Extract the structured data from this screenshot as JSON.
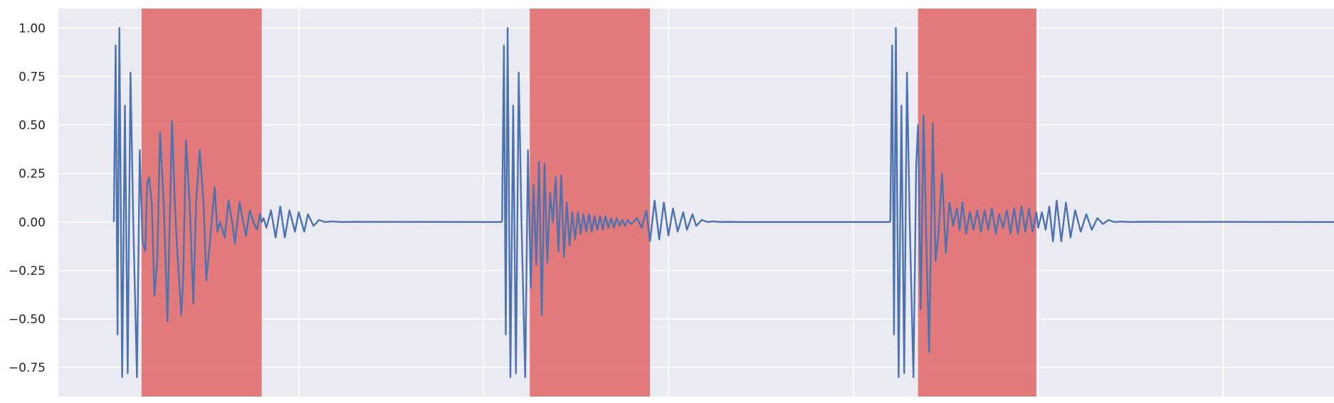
{
  "chart_data": {
    "type": "line",
    "title": "",
    "xlabel": "",
    "ylabel": "",
    "xlim": [
      -0.3,
      6.6
    ],
    "ylim": [
      -0.9,
      1.1
    ],
    "xticks": [
      1,
      2,
      3,
      4,
      5,
      6
    ],
    "yticks": [
      -0.75,
      -0.5,
      -0.25,
      0.0,
      0.25,
      0.5,
      0.75,
      1.0
    ],
    "ytick_labels": [
      "−0.75",
      "−0.50",
      "−0.25",
      "0.00",
      "0.25",
      "0.50",
      "0.75",
      "1.00"
    ],
    "grid": true,
    "background": "#eaeaf2",
    "line_color": "#4c72b0",
    "span_color": "#e06666",
    "highlight_spans": [
      {
        "x0": 0.15,
        "x1": 0.8
      },
      {
        "x0": 2.25,
        "x1": 2.9
      },
      {
        "x0": 4.35,
        "x1": 4.99
      }
    ],
    "series": [
      {
        "x": [
          0.0,
          0.01,
          0.02,
          0.03,
          0.045,
          0.06,
          0.075,
          0.09,
          0.105,
          0.125,
          0.14,
          0.155,
          0.17,
          0.18,
          0.19,
          0.205,
          0.22,
          0.235,
          0.25,
          0.27,
          0.29,
          0.315,
          0.33,
          0.34,
          0.365,
          0.375,
          0.39,
          0.41,
          0.43,
          0.445,
          0.465,
          0.485,
          0.5,
          0.52,
          0.545,
          0.56,
          0.575,
          0.6,
          0.62,
          0.64,
          0.655,
          0.68,
          0.7,
          0.715,
          0.735,
          0.755,
          0.775,
          0.79,
          0.8,
          0.81,
          0.825,
          0.85,
          0.875,
          0.9,
          0.925,
          0.95,
          0.98,
          1.0,
          1.03,
          1.05,
          1.08,
          1.11,
          1.14,
          1.18,
          1.23,
          1.3,
          2.1
        ],
        "y": [
          0.0,
          0.91,
          -0.58,
          1.0,
          -0.8,
          0.6,
          -0.78,
          0.77,
          0.0,
          -0.8,
          0.37,
          -0.1,
          -0.15,
          0.2,
          0.23,
          0.1,
          -0.38,
          -0.2,
          0.46,
          0.1,
          -0.51,
          0.52,
          0.1,
          -0.1,
          -0.48,
          -0.3,
          0.42,
          0.1,
          -0.42,
          0.1,
          0.37,
          0.1,
          -0.3,
          -0.1,
          0.18,
          -0.05,
          0.0,
          -0.08,
          0.11,
          0.0,
          -0.11,
          0.1,
          0.0,
          -0.07,
          0.06,
          0.0,
          -0.04,
          0.04,
          0.0,
          0.02,
          -0.03,
          0.06,
          -0.08,
          0.08,
          -0.08,
          0.06,
          -0.05,
          0.05,
          -0.05,
          0.04,
          -0.02,
          0.01,
          0.0,
          0.003,
          0.0,
          0.001,
          0.0
        ]
      },
      {
        "x": [
          2.1,
          2.11,
          2.12,
          2.13,
          2.145,
          2.16,
          2.175,
          2.19,
          2.205,
          2.225,
          2.24,
          2.255,
          2.27,
          2.285,
          2.3,
          2.315,
          2.33,
          2.345,
          2.36,
          2.375,
          2.39,
          2.405,
          2.42,
          2.435,
          2.45,
          2.465,
          2.48,
          2.495,
          2.51,
          2.525,
          2.54,
          2.555,
          2.57,
          2.585,
          2.6,
          2.615,
          2.63,
          2.645,
          2.66,
          2.675,
          2.69,
          2.705,
          2.72,
          2.735,
          2.75,
          2.765,
          2.78,
          2.795,
          2.81,
          2.83,
          2.855,
          2.88,
          2.9,
          2.925,
          2.95,
          2.975,
          3.0,
          3.025,
          3.05,
          3.08,
          3.1,
          3.13,
          3.15,
          3.18,
          3.21,
          3.24,
          3.28,
          3.33,
          3.4,
          4.2
        ],
        "y": [
          0.0,
          0.91,
          -0.58,
          1.0,
          -0.8,
          0.6,
          -0.78,
          0.77,
          0.0,
          -0.8,
          0.37,
          -0.34,
          0.19,
          -0.22,
          0.31,
          -0.48,
          0.3,
          -0.21,
          0.15,
          0.0,
          0.23,
          -0.15,
          0.24,
          -0.18,
          0.1,
          -0.12,
          0.05,
          -0.09,
          0.05,
          -0.06,
          0.04,
          -0.05,
          0.04,
          -0.05,
          0.03,
          -0.04,
          0.03,
          -0.04,
          0.03,
          -0.03,
          0.02,
          -0.03,
          0.02,
          -0.02,
          0.01,
          -0.02,
          0.01,
          -0.01,
          0.0,
          0.02,
          -0.03,
          0.06,
          -0.1,
          0.11,
          -0.09,
          0.1,
          -0.07,
          0.07,
          -0.05,
          0.05,
          -0.04,
          0.04,
          -0.02,
          0.01,
          0.0,
          0.003,
          0.0,
          0.001,
          0.0,
          0.0
        ]
      },
      {
        "x": [
          4.2,
          4.21,
          4.22,
          4.23,
          4.245,
          4.26,
          4.275,
          4.29,
          4.305,
          4.325,
          4.34,
          4.35,
          4.365,
          4.38,
          4.395,
          4.41,
          4.43,
          4.445,
          4.46,
          4.48,
          4.5,
          4.52,
          4.54,
          4.56,
          4.575,
          4.59,
          4.61,
          4.63,
          4.65,
          4.67,
          4.69,
          4.71,
          4.73,
          4.75,
          4.77,
          4.79,
          4.81,
          4.83,
          4.85,
          4.87,
          4.89,
          4.91,
          4.93,
          4.95,
          4.97,
          4.99,
          5.0,
          5.02,
          5.04,
          5.06,
          5.08,
          5.1,
          5.125,
          5.15,
          5.175,
          5.2,
          5.23,
          5.26,
          5.29,
          5.32,
          5.35,
          5.38,
          5.41,
          5.45,
          5.5,
          5.56,
          6.6
        ],
        "y": [
          0.0,
          0.91,
          -0.58,
          1.0,
          -0.8,
          0.6,
          -0.78,
          0.77,
          0.0,
          -0.8,
          0.3,
          0.5,
          -0.45,
          0.55,
          -0.1,
          -0.67,
          0.51,
          -0.2,
          -0.07,
          0.25,
          -0.16,
          0.1,
          -0.02,
          0.07,
          -0.04,
          0.1,
          -0.06,
          0.05,
          -0.04,
          0.06,
          -0.05,
          0.06,
          -0.04,
          0.07,
          -0.06,
          0.04,
          -0.03,
          0.06,
          -0.06,
          0.07,
          -0.06,
          0.08,
          -0.05,
          0.07,
          -0.05,
          0.05,
          -0.03,
          0.05,
          -0.04,
          0.08,
          -0.1,
          0.11,
          -0.1,
          0.1,
          -0.08,
          0.06,
          -0.05,
          0.04,
          -0.04,
          0.02,
          -0.01,
          0.01,
          0.0,
          0.002,
          0.0,
          0.001,
          0.0
        ]
      }
    ]
  }
}
